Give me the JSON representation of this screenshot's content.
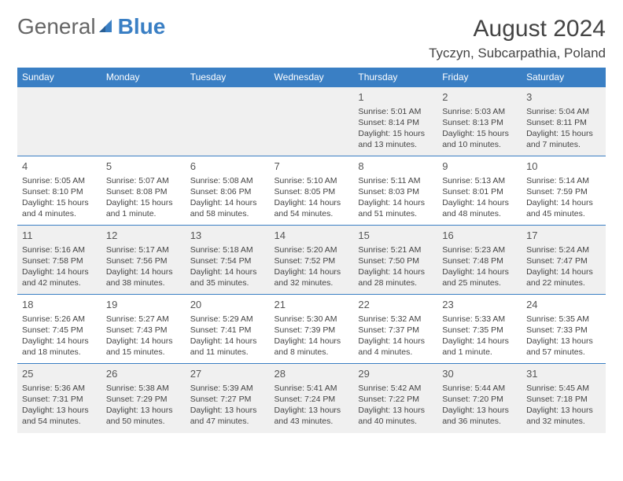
{
  "logo": {
    "text1": "General",
    "text2": "Blue"
  },
  "title": "August 2024",
  "subtitle": "Tyczyn, Subcarpathia, Poland",
  "colors": {
    "accent": "#3a7fc4",
    "alt_row": "#f0f0f0",
    "text": "#444444"
  },
  "days": [
    "Sunday",
    "Monday",
    "Tuesday",
    "Wednesday",
    "Thursday",
    "Friday",
    "Saturday"
  ],
  "weeks": [
    [
      null,
      null,
      null,
      null,
      {
        "n": "1",
        "sr": "Sunrise: 5:01 AM",
        "ss": "Sunset: 8:14 PM",
        "d1": "Daylight: 15 hours",
        "d2": "and 13 minutes."
      },
      {
        "n": "2",
        "sr": "Sunrise: 5:03 AM",
        "ss": "Sunset: 8:13 PM",
        "d1": "Daylight: 15 hours",
        "d2": "and 10 minutes."
      },
      {
        "n": "3",
        "sr": "Sunrise: 5:04 AM",
        "ss": "Sunset: 8:11 PM",
        "d1": "Daylight: 15 hours",
        "d2": "and 7 minutes."
      }
    ],
    [
      {
        "n": "4",
        "sr": "Sunrise: 5:05 AM",
        "ss": "Sunset: 8:10 PM",
        "d1": "Daylight: 15 hours",
        "d2": "and 4 minutes."
      },
      {
        "n": "5",
        "sr": "Sunrise: 5:07 AM",
        "ss": "Sunset: 8:08 PM",
        "d1": "Daylight: 15 hours",
        "d2": "and 1 minute."
      },
      {
        "n": "6",
        "sr": "Sunrise: 5:08 AM",
        "ss": "Sunset: 8:06 PM",
        "d1": "Daylight: 14 hours",
        "d2": "and 58 minutes."
      },
      {
        "n": "7",
        "sr": "Sunrise: 5:10 AM",
        "ss": "Sunset: 8:05 PM",
        "d1": "Daylight: 14 hours",
        "d2": "and 54 minutes."
      },
      {
        "n": "8",
        "sr": "Sunrise: 5:11 AM",
        "ss": "Sunset: 8:03 PM",
        "d1": "Daylight: 14 hours",
        "d2": "and 51 minutes."
      },
      {
        "n": "9",
        "sr": "Sunrise: 5:13 AM",
        "ss": "Sunset: 8:01 PM",
        "d1": "Daylight: 14 hours",
        "d2": "and 48 minutes."
      },
      {
        "n": "10",
        "sr": "Sunrise: 5:14 AM",
        "ss": "Sunset: 7:59 PM",
        "d1": "Daylight: 14 hours",
        "d2": "and 45 minutes."
      }
    ],
    [
      {
        "n": "11",
        "sr": "Sunrise: 5:16 AM",
        "ss": "Sunset: 7:58 PM",
        "d1": "Daylight: 14 hours",
        "d2": "and 42 minutes."
      },
      {
        "n": "12",
        "sr": "Sunrise: 5:17 AM",
        "ss": "Sunset: 7:56 PM",
        "d1": "Daylight: 14 hours",
        "d2": "and 38 minutes."
      },
      {
        "n": "13",
        "sr": "Sunrise: 5:18 AM",
        "ss": "Sunset: 7:54 PM",
        "d1": "Daylight: 14 hours",
        "d2": "and 35 minutes."
      },
      {
        "n": "14",
        "sr": "Sunrise: 5:20 AM",
        "ss": "Sunset: 7:52 PM",
        "d1": "Daylight: 14 hours",
        "d2": "and 32 minutes."
      },
      {
        "n": "15",
        "sr": "Sunrise: 5:21 AM",
        "ss": "Sunset: 7:50 PM",
        "d1": "Daylight: 14 hours",
        "d2": "and 28 minutes."
      },
      {
        "n": "16",
        "sr": "Sunrise: 5:23 AM",
        "ss": "Sunset: 7:48 PM",
        "d1": "Daylight: 14 hours",
        "d2": "and 25 minutes."
      },
      {
        "n": "17",
        "sr": "Sunrise: 5:24 AM",
        "ss": "Sunset: 7:47 PM",
        "d1": "Daylight: 14 hours",
        "d2": "and 22 minutes."
      }
    ],
    [
      {
        "n": "18",
        "sr": "Sunrise: 5:26 AM",
        "ss": "Sunset: 7:45 PM",
        "d1": "Daylight: 14 hours",
        "d2": "and 18 minutes."
      },
      {
        "n": "19",
        "sr": "Sunrise: 5:27 AM",
        "ss": "Sunset: 7:43 PM",
        "d1": "Daylight: 14 hours",
        "d2": "and 15 minutes."
      },
      {
        "n": "20",
        "sr": "Sunrise: 5:29 AM",
        "ss": "Sunset: 7:41 PM",
        "d1": "Daylight: 14 hours",
        "d2": "and 11 minutes."
      },
      {
        "n": "21",
        "sr": "Sunrise: 5:30 AM",
        "ss": "Sunset: 7:39 PM",
        "d1": "Daylight: 14 hours",
        "d2": "and 8 minutes."
      },
      {
        "n": "22",
        "sr": "Sunrise: 5:32 AM",
        "ss": "Sunset: 7:37 PM",
        "d1": "Daylight: 14 hours",
        "d2": "and 4 minutes."
      },
      {
        "n": "23",
        "sr": "Sunrise: 5:33 AM",
        "ss": "Sunset: 7:35 PM",
        "d1": "Daylight: 14 hours",
        "d2": "and 1 minute."
      },
      {
        "n": "24",
        "sr": "Sunrise: 5:35 AM",
        "ss": "Sunset: 7:33 PM",
        "d1": "Daylight: 13 hours",
        "d2": "and 57 minutes."
      }
    ],
    [
      {
        "n": "25",
        "sr": "Sunrise: 5:36 AM",
        "ss": "Sunset: 7:31 PM",
        "d1": "Daylight: 13 hours",
        "d2": "and 54 minutes."
      },
      {
        "n": "26",
        "sr": "Sunrise: 5:38 AM",
        "ss": "Sunset: 7:29 PM",
        "d1": "Daylight: 13 hours",
        "d2": "and 50 minutes."
      },
      {
        "n": "27",
        "sr": "Sunrise: 5:39 AM",
        "ss": "Sunset: 7:27 PM",
        "d1": "Daylight: 13 hours",
        "d2": "and 47 minutes."
      },
      {
        "n": "28",
        "sr": "Sunrise: 5:41 AM",
        "ss": "Sunset: 7:24 PM",
        "d1": "Daylight: 13 hours",
        "d2": "and 43 minutes."
      },
      {
        "n": "29",
        "sr": "Sunrise: 5:42 AM",
        "ss": "Sunset: 7:22 PM",
        "d1": "Daylight: 13 hours",
        "d2": "and 40 minutes."
      },
      {
        "n": "30",
        "sr": "Sunrise: 5:44 AM",
        "ss": "Sunset: 7:20 PM",
        "d1": "Daylight: 13 hours",
        "d2": "and 36 minutes."
      },
      {
        "n": "31",
        "sr": "Sunrise: 5:45 AM",
        "ss": "Sunset: 7:18 PM",
        "d1": "Daylight: 13 hours",
        "d2": "and 32 minutes."
      }
    ]
  ]
}
